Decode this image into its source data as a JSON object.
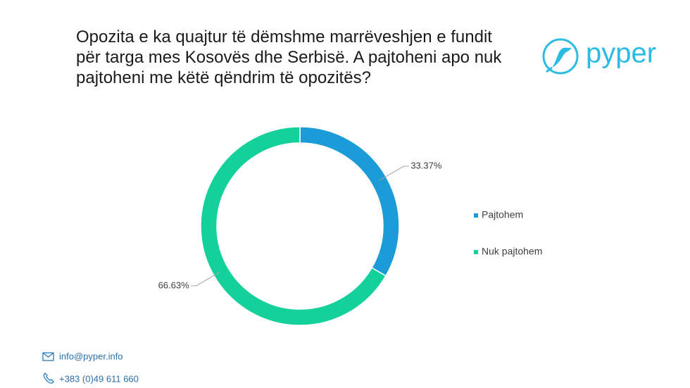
{
  "chart_data": {
    "type": "donut",
    "title": "Opozita e ka quajtur të dëmshme marrëveshjen e fundit për targa mes Kosovës dhe Serbisë. A pajtoheni apo nuk pajtoheni me këtë qëndrim të opozitës?",
    "categories": [
      "Pajtohem",
      "Nuk pajtohem"
    ],
    "values": [
      33.37,
      66.63
    ],
    "value_labels": [
      "33.37%",
      "66.63%"
    ],
    "colors": [
      "#1b9bd7",
      "#14d19b"
    ],
    "legend": "right"
  },
  "logo": "pyper",
  "footer": {
    "email": "info@pyper.info",
    "phone": "+383 (0)49 611 660"
  }
}
